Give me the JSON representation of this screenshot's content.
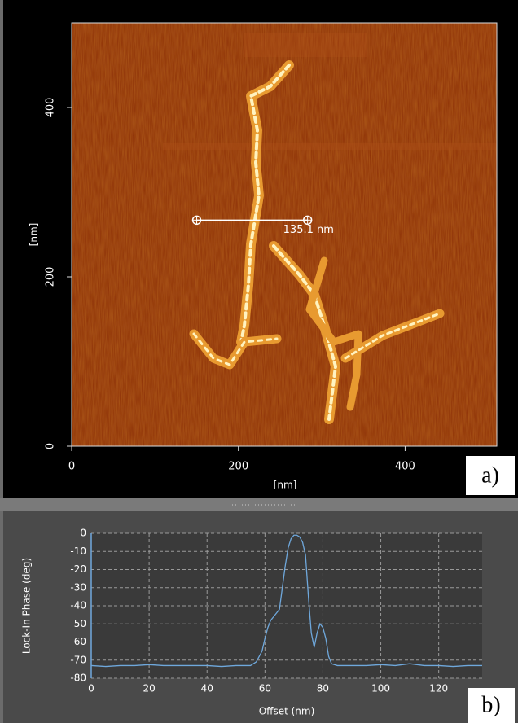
{
  "chart_data": [
    {
      "type": "image",
      "xlabel": "[nm]",
      "ylabel": "[nm]",
      "xlim": [
        0,
        510
      ],
      "ylim": [
        0,
        500
      ],
      "xticks": [
        0,
        200,
        400
      ],
      "yticks": [
        0,
        200,
        400
      ],
      "measurement": {
        "label": "135.1 nm",
        "x": [
          150,
          283
        ],
        "y": 267
      },
      "panel_label": "a)"
    },
    {
      "type": "line",
      "xlabel": "Offset (nm)",
      "ylabel": "Lock-In Phase (deg)",
      "xlim": [
        0,
        135
      ],
      "ylim": [
        -80,
        0
      ],
      "xticks": [
        0,
        20,
        40,
        60,
        80,
        100,
        120
      ],
      "yticks": [
        0,
        -10,
        -20,
        -30,
        -40,
        -50,
        -60,
        -70,
        -80
      ],
      "grid": true,
      "x": [
        0,
        5,
        10,
        15,
        20,
        25,
        30,
        35,
        40,
        45,
        50,
        55,
        57,
        59,
        60,
        61,
        62,
        63,
        64,
        65,
        66,
        67,
        68,
        69,
        70,
        71,
        72,
        73,
        74,
        75,
        76,
        77,
        78,
        79,
        80,
        81,
        82,
        83,
        85,
        90,
        95,
        100,
        105,
        110,
        115,
        120,
        125,
        130,
        135
      ],
      "series": [
        {
          "color": "#6fa8dc",
          "values": [
            -73,
            -73.5,
            -73,
            -73,
            -72.5,
            -73,
            -73,
            -73,
            -73,
            -73.5,
            -73,
            -73,
            -71,
            -65,
            -58,
            -52,
            -48,
            -46,
            -44,
            -42,
            -30,
            -18,
            -8,
            -3,
            -1,
            -1,
            -2,
            -5,
            -12,
            -35,
            -55,
            -63,
            -55,
            -50,
            -52,
            -58,
            -68,
            -72,
            -73,
            -73,
            -73,
            -72.5,
            -73,
            -72,
            -73,
            -73,
            -73.5,
            -73,
            -73
          ]
        }
      ],
      "panel_label": "b)"
    }
  ]
}
